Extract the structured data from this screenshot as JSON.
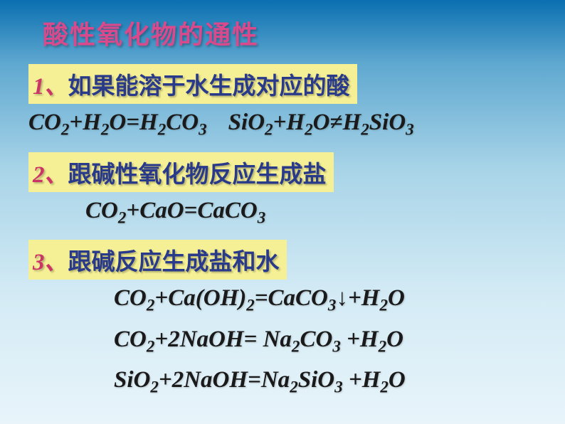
{
  "title": "酸性氧化物的通性",
  "sections": [
    {
      "num": "1、",
      "heading": "如果能溶于水生成对应的酸",
      "equations": [
        {
          "html": "CO<sub>2</sub>+H<sub>2</sub>O=H<sub>2</sub>CO<sub>3</sub><span class='gap'></span>SiO<sub>2</sub>+H<sub>2</sub>O<span class='neq'>≠</span>H<sub>2</sub>SiO<sub>3</sub>",
          "indent": ""
        }
      ]
    },
    {
      "num": "2、",
      "heading": "跟碱性氧化物反应生成盐",
      "equations": [
        {
          "html": "CO<sub>2</sub>+CaO=CaCO<sub>3</sub>",
          "indent": "eq-indent"
        }
      ]
    },
    {
      "num": "3、",
      "heading": "跟碱反应生成盐和水",
      "equations": [
        {
          "html": "CO<sub>2</sub>+Ca(OH)<sub>2</sub>=CaCO<sub>3</sub><span class='arrow-down'>↓</span>+H<sub>2</sub>O",
          "indent": "eq-indent2"
        },
        {
          "html": "CO<sub>2</sub>+2NaOH= Na<sub>2</sub>CO<sub>3</sub> +H<sub>2</sub>O",
          "indent": "eq-indent2"
        },
        {
          "html": "SiO<sub>2</sub>+2NaOH=Na<sub>2</sub>SiO<sub>3</sub> +H<sub>2</sub>O",
          "indent": "eq-indent2"
        }
      ]
    }
  ],
  "colors": {
    "title_color": "#d84a8c",
    "heading_bg": "#f5f095",
    "heading_num": "#cc3366",
    "heading_text": "#2a3a8a",
    "equation_color": "#1a1a1a"
  }
}
